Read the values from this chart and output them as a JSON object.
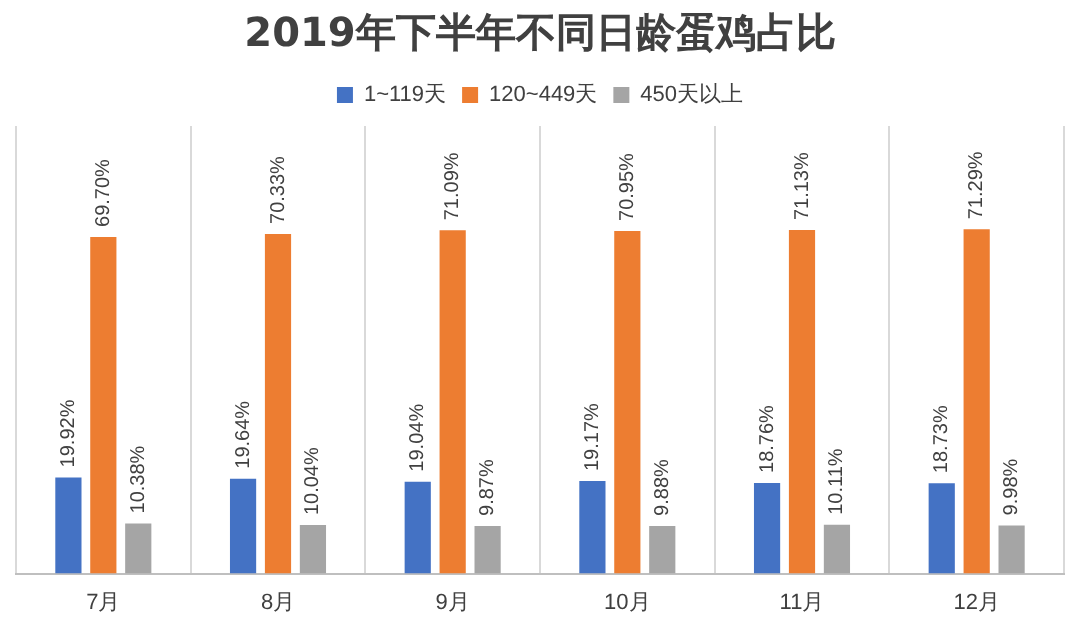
{
  "chart_data": {
    "type": "bar",
    "title": "2019年下半年不同日龄蛋鸡占比",
    "categories": [
      "7月",
      "8月",
      "9月",
      "10月",
      "11月",
      "12月"
    ],
    "series": [
      {
        "name": "1~119天",
        "color": "#4472c4",
        "values": [
          19.92,
          19.64,
          19.04,
          19.17,
          18.76,
          18.73
        ],
        "value_labels": [
          "19.92%",
          "19.64%",
          "19.04%",
          "19.17%",
          "18.76%",
          "18.73%"
        ]
      },
      {
        "name": "120~449天",
        "color": "#ed7d31",
        "values": [
          69.7,
          70.33,
          71.09,
          70.95,
          71.13,
          71.29
        ],
        "value_labels": [
          "69.70%",
          "70.33%",
          "71.09%",
          "70.95%",
          "71.13%",
          "71.29%"
        ]
      },
      {
        "name": "450天以上",
        "color": "#a5a5a5",
        "values": [
          10.38,
          10.04,
          9.87,
          9.88,
          10.11,
          9.98
        ],
        "value_labels": [
          "10.38%",
          "10.04%",
          "9.87%",
          "9.88%",
          "10.11%",
          "9.98%"
        ]
      }
    ],
    "legend": "top",
    "grid": "x",
    "tick_labels": "x"
  }
}
